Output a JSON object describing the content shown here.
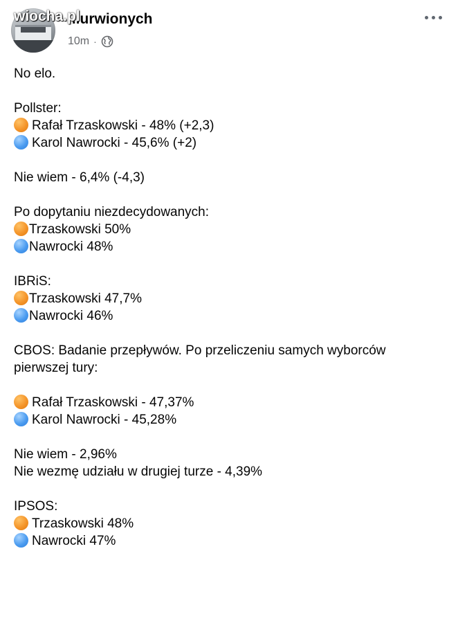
{
  "header": {
    "watermark": "wiocha.pl",
    "group_name": "...urwionych",
    "timestamp": "10m",
    "separator": "·",
    "privacy_icon": "globe-icon",
    "more_icon": "more-options-icon"
  },
  "colors": {
    "orange_circle": "#f4952a",
    "blue_circle": "#4c9cf0",
    "meta_text": "#65676b"
  },
  "post": {
    "greeting": "No elo.",
    "pollster": {
      "title": "Pollster:",
      "candidate1": "Rafał Trzaskowski - 48% (+2,3)",
      "candidate2": "Karol Nawrocki - 45,6% (+2)",
      "undecided": "Nie wiem - 6,4% (-4,3)"
    },
    "followup": {
      "title": "Po dopytaniu niezdecydowanych:",
      "candidate1": "Trzaskowski 50%",
      "candidate2": "Nawrocki 48%"
    },
    "ibris": {
      "title": "IBRiS:",
      "candidate1": "Trzaskowski 47,7%",
      "candidate2": "Nawrocki 46%"
    },
    "cbos": {
      "title_line1": "CBOS: Badanie przepływów. Po przeliczeniu samych wyborców",
      "title_line2": "pierwszej tury:",
      "candidate1": "Rafał Trzaskowski - 47,37%",
      "candidate2": "Karol Nawrocki - 45,28%",
      "undecided": "Nie wiem - 2,96%",
      "not_voting": "Nie wezmę udziału w drugiej turze - 4,39%"
    },
    "ipsos": {
      "title": "IPSOS:",
      "candidate1": "Trzaskowski 48%",
      "candidate2": "Nawrocki 47%"
    }
  }
}
